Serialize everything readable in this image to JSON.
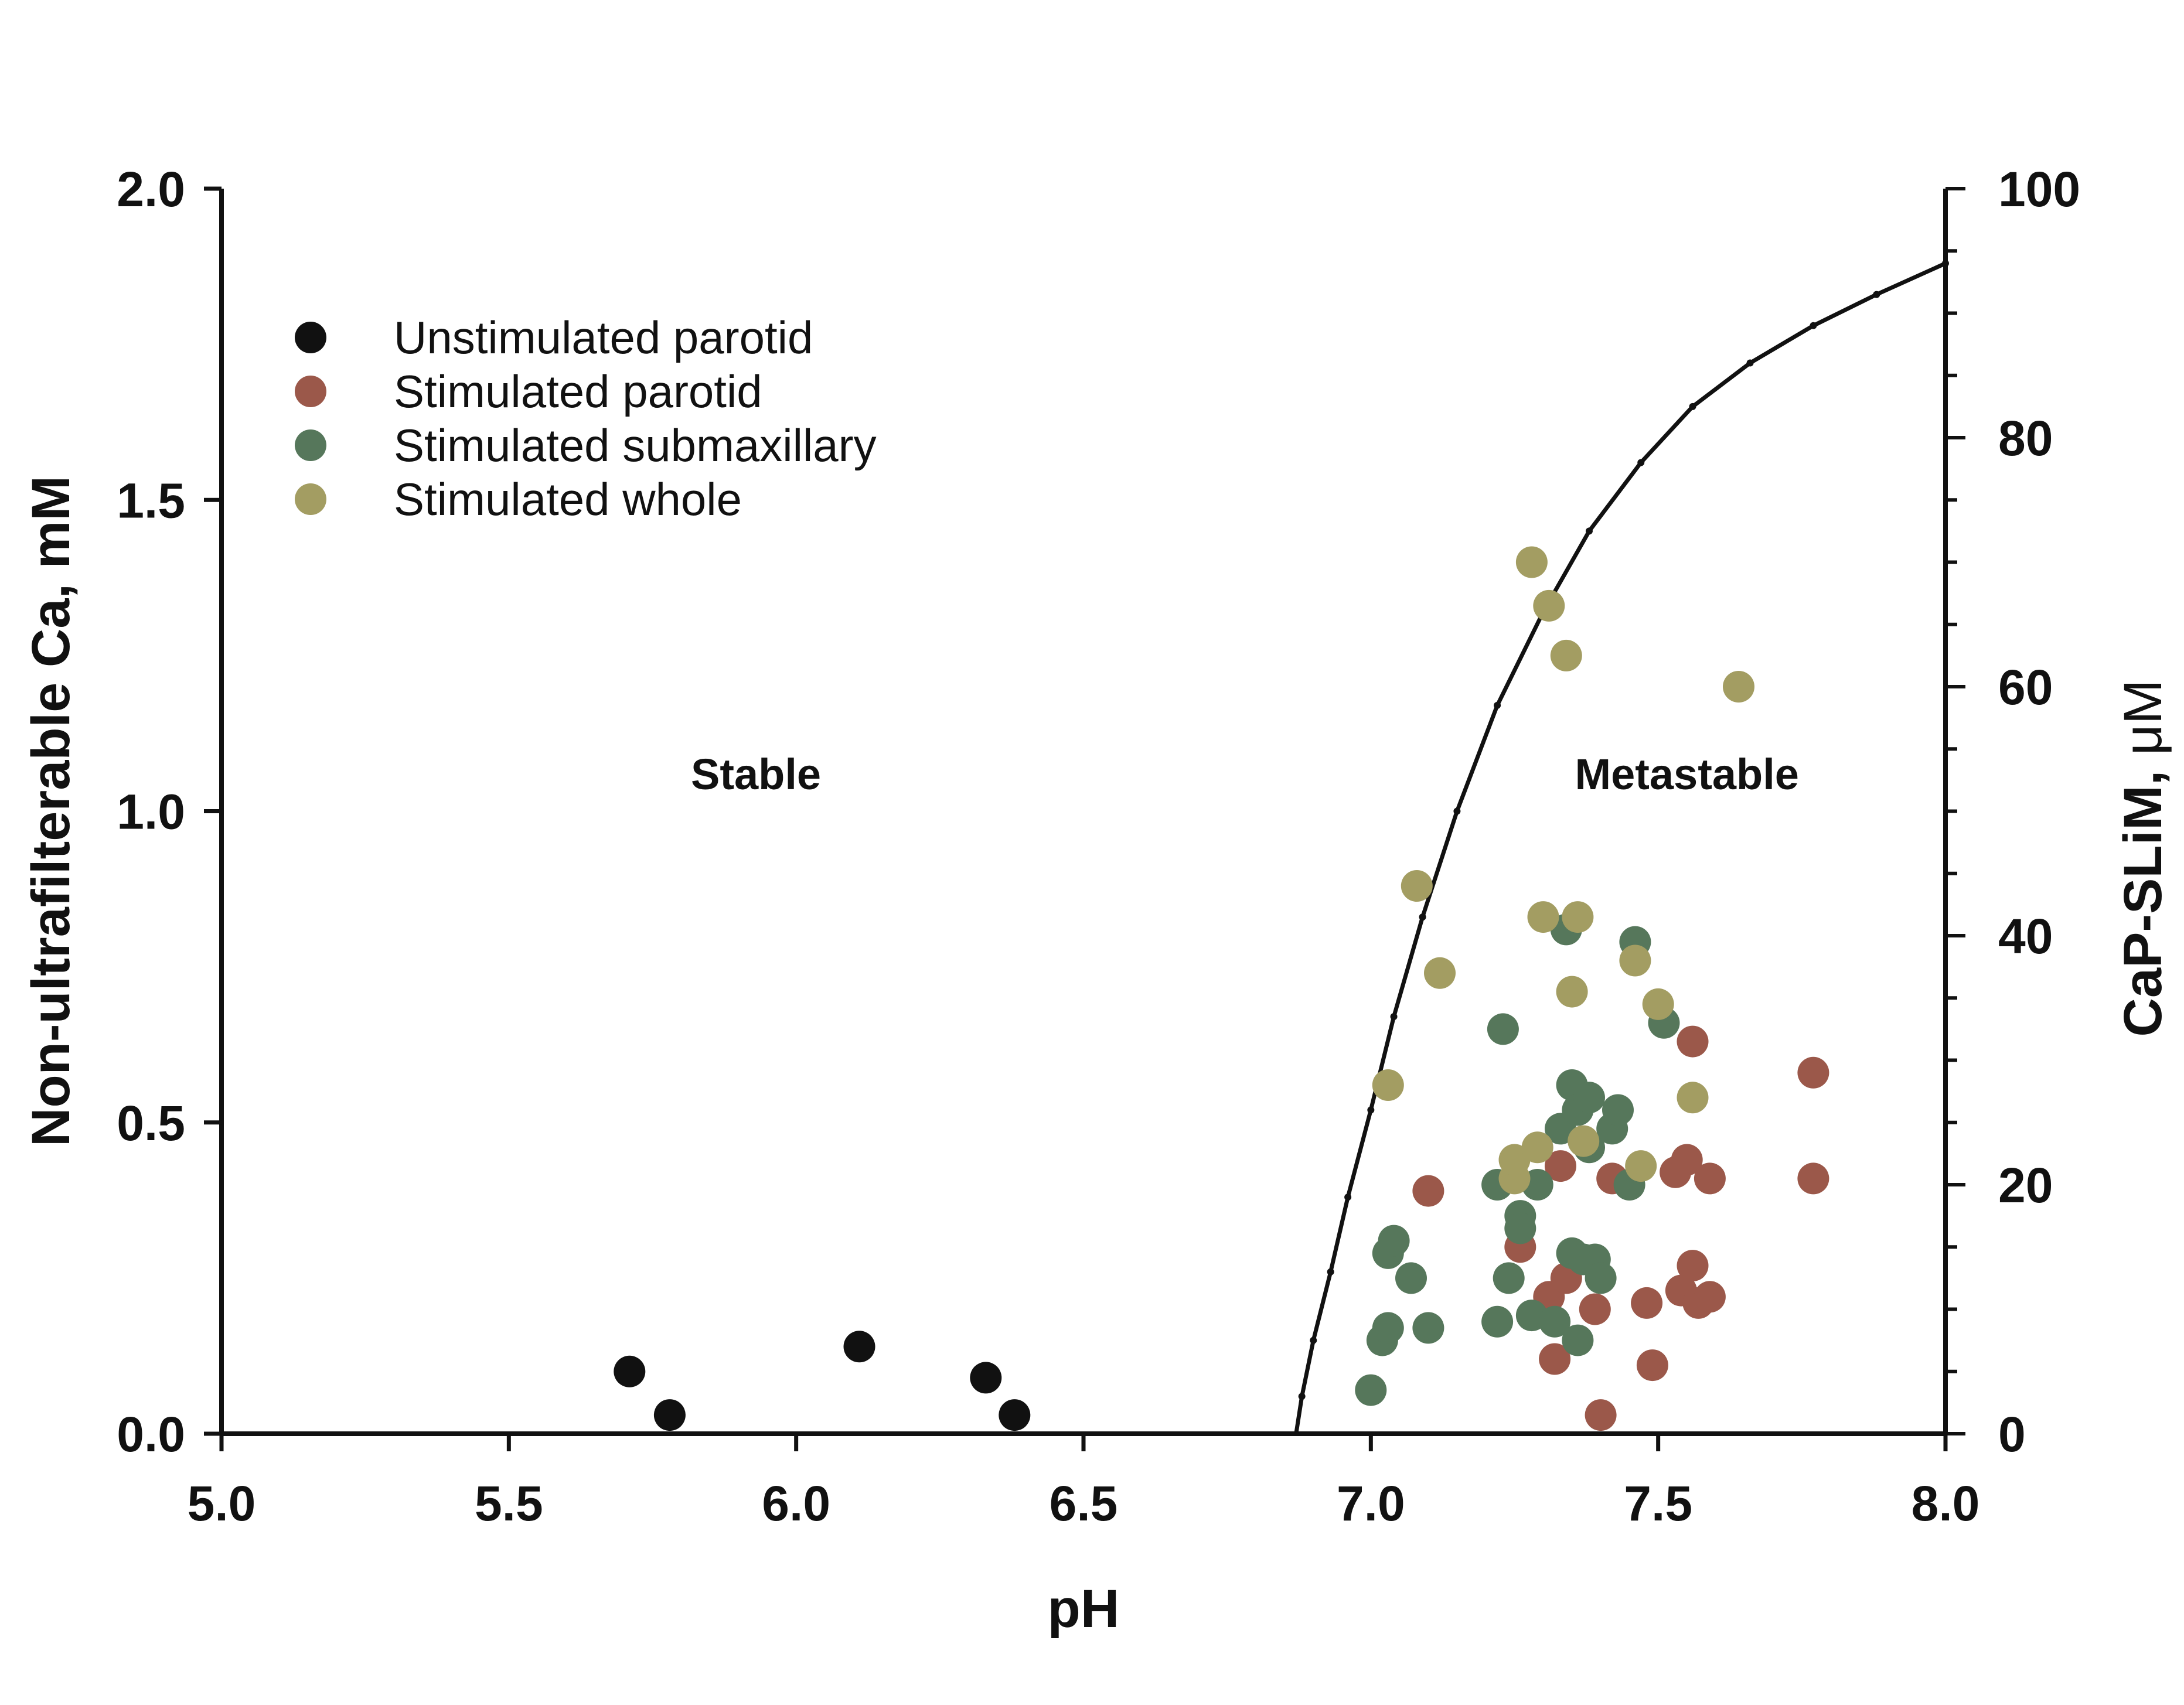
{
  "chart_data": {
    "type": "scatter",
    "title": "",
    "xlabel": "pH",
    "ylabel": "Non-ultrafilterable Ca, mM",
    "y2label_main": "CaP-SLiM, ",
    "y2label_unit": "μM",
    "xlim": [
      5.0,
      8.0
    ],
    "ylim": [
      0.0,
      2.0
    ],
    "y2lim": [
      0,
      100
    ],
    "x_ticks": [
      "5.0",
      "5.5",
      "6.0",
      "6.5",
      "7.0",
      "7.5",
      "8.0"
    ],
    "y_ticks": [
      "0.0",
      "0.5",
      "1.0",
      "1.5",
      "2.0"
    ],
    "y2_ticks": [
      "0",
      "20",
      "40",
      "60",
      "80",
      "100"
    ],
    "grid": false,
    "legend_position": "top-left",
    "annotations": [
      {
        "text": "Stable",
        "x": 5.93,
        "y": 1.06
      },
      {
        "text": "Metastable",
        "x": 7.55,
        "y": 1.06
      }
    ],
    "curve": {
      "name": "",
      "color": "#111111",
      "x": [
        6.87,
        6.88,
        6.9,
        6.93,
        6.96,
        7.0,
        7.04,
        7.09,
        7.15,
        7.22,
        7.3,
        7.38,
        7.47,
        7.56,
        7.66,
        7.77,
        7.88,
        8.0
      ],
      "y": [
        0.0,
        0.06,
        0.15,
        0.26,
        0.38,
        0.52,
        0.67,
        0.83,
        1.0,
        1.17,
        1.32,
        1.45,
        1.56,
        1.65,
        1.72,
        1.78,
        1.83,
        1.88
      ]
    },
    "series": [
      {
        "name": "Unstimulated parotid",
        "color": "#111111",
        "x": [
          5.71,
          5.78,
          6.11,
          6.33,
          6.38
        ],
        "y": [
          0.1,
          0.03,
          0.14,
          0.09,
          0.03
        ]
      },
      {
        "name": "Stimulated parotid",
        "color": "#9b584a",
        "x": [
          7.1,
          7.26,
          7.31,
          7.32,
          7.33,
          7.34,
          7.39,
          7.4,
          7.42,
          7.48,
          7.49,
          7.53,
          7.54,
          7.55,
          7.56,
          7.56,
          7.57,
          7.59,
          7.59,
          7.77,
          7.77
        ],
        "y": [
          0.39,
          0.3,
          0.22,
          0.12,
          0.43,
          0.25,
          0.2,
          0.03,
          0.41,
          0.21,
          0.11,
          0.42,
          0.23,
          0.44,
          0.27,
          0.63,
          0.21,
          0.22,
          0.41,
          0.58,
          0.41
        ]
      },
      {
        "name": "Stimulated submaxillary",
        "color": "#56775b",
        "x": [
          7.0,
          7.02,
          7.03,
          7.03,
          7.04,
          7.07,
          7.1,
          7.22,
          7.22,
          7.23,
          7.24,
          7.26,
          7.26,
          7.28,
          7.29,
          7.32,
          7.33,
          7.34,
          7.35,
          7.35,
          7.36,
          7.36,
          7.37,
          7.38,
          7.38,
          7.39,
          7.4,
          7.42,
          7.43,
          7.45,
          7.46,
          7.51
        ],
        "y": [
          0.07,
          0.15,
          0.17,
          0.29,
          0.31,
          0.25,
          0.17,
          0.18,
          0.4,
          0.65,
          0.25,
          0.35,
          0.33,
          0.19,
          0.4,
          0.18,
          0.49,
          0.81,
          0.56,
          0.29,
          0.15,
          0.52,
          0.28,
          0.46,
          0.54,
          0.28,
          0.25,
          0.49,
          0.52,
          0.4,
          0.79,
          0.66
        ]
      },
      {
        "name": "Stimulated whole",
        "color": "#a39d62",
        "x": [
          7.03,
          7.08,
          7.12,
          7.25,
          7.25,
          7.28,
          7.29,
          7.3,
          7.31,
          7.34,
          7.35,
          7.36,
          7.37,
          7.46,
          7.47,
          7.5,
          7.56,
          7.64
        ],
        "y": [
          0.56,
          0.88,
          0.74,
          0.41,
          0.44,
          1.4,
          0.46,
          0.83,
          1.33,
          1.25,
          0.71,
          0.83,
          0.47,
          0.76,
          0.43,
          0.69,
          0.54,
          1.2
        ]
      }
    ]
  }
}
